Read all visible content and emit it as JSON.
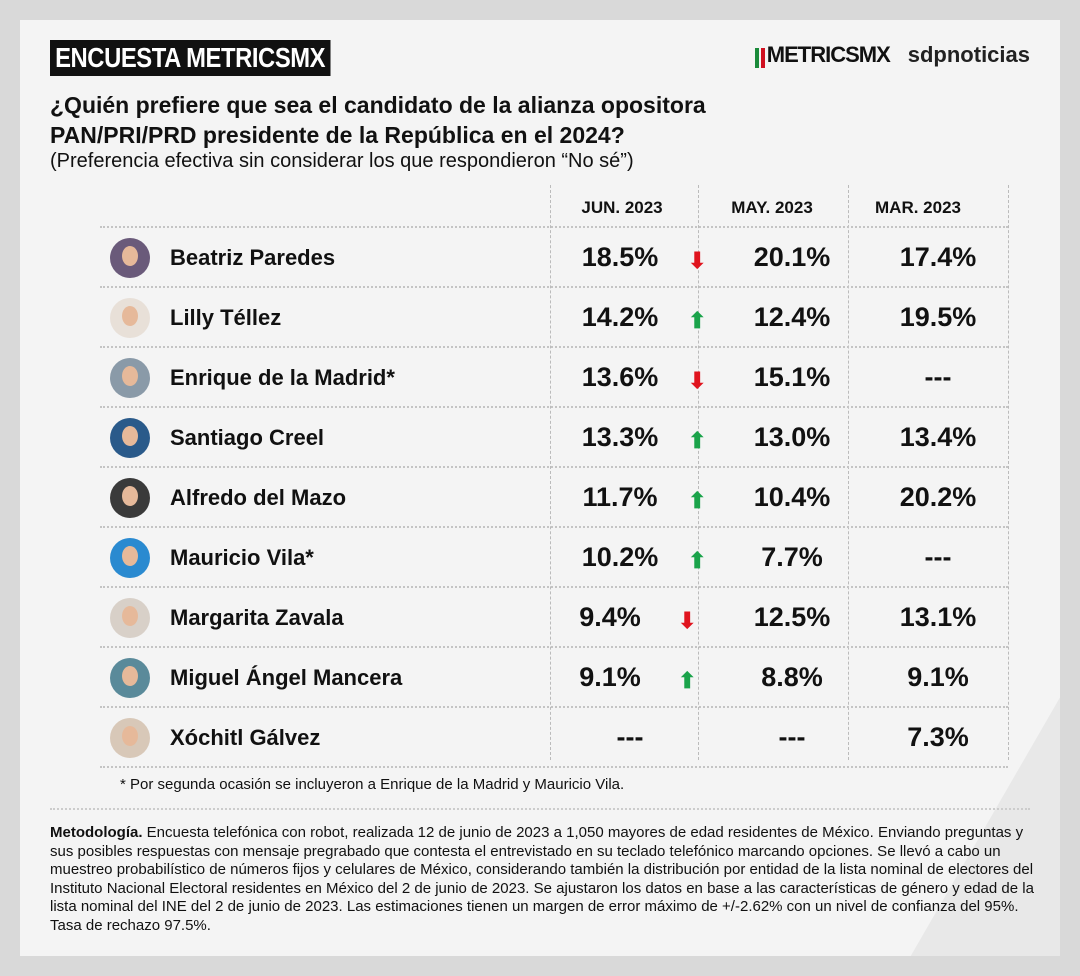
{
  "header": {
    "badge": "ENCUESTA METRICSMX",
    "logo_metrics": "METRICSMX",
    "logo_sdp": "sdpnoticias"
  },
  "title_line1": "¿Quién prefiere que sea el candidato de la alianza opositora",
  "title_line2": "PAN/PRI/PRD presidente de la República en el 2024?",
  "subtitle": "(Preferencia efectiva sin considerar los que respondieron “No sé”)",
  "colors": {
    "up": "#1aa34a",
    "down": "#e0141e"
  },
  "chart_data": {
    "type": "table",
    "columns": [
      "JUN. 2023",
      "MAY. 2023",
      "MAR. 2023"
    ],
    "rows": [
      {
        "name": "Beatriz Paredes",
        "jun": "18.5%",
        "trend": "down",
        "may": "20.1%",
        "mar": "17.4%"
      },
      {
        "name": "Lilly Téllez",
        "jun": "14.2%",
        "trend": "up",
        "may": "12.4%",
        "mar": "19.5%"
      },
      {
        "name": "Enrique de la Madrid*",
        "jun": "13.6%",
        "trend": "down",
        "may": "15.1%",
        "mar": "---"
      },
      {
        "name": "Santiago Creel",
        "jun": "13.3%",
        "trend": "up",
        "may": "13.0%",
        "mar": "13.4%"
      },
      {
        "name": "Alfredo del Mazo",
        "jun": "11.7%",
        "trend": "up",
        "may": "10.4%",
        "mar": "20.2%"
      },
      {
        "name": "Mauricio Vila*",
        "jun": "10.2%",
        "trend": "up",
        "may": "7.7%",
        "mar": "---"
      },
      {
        "name": "Margarita Zavala",
        "jun": "9.4%",
        "trend": "down",
        "may": "12.5%",
        "mar": "13.1%"
      },
      {
        "name": "Miguel Ángel Mancera",
        "jun": "9.1%",
        "trend": "up",
        "may": "8.8%",
        "mar": "9.1%"
      },
      {
        "name": "Xóchitl Gálvez",
        "jun": "---",
        "trend": "",
        "may": "---",
        "mar": "7.3%"
      }
    ]
  },
  "note": "* Por segunda ocasión se incluyeron a Enrique de la Madrid y Mauricio Vila.",
  "methodology_label": "Metodología.",
  "methodology_text": " Encuesta telefónica con robot, realizada 12 de junio de 2023 a 1,050 mayores de edad residentes de México. Enviando preguntas y sus posibles respuestas con mensaje pregrabado que contesta el entrevistado en su teclado telefónico marcando opciones. Se llevó a cabo un muestreo probabilístico de números fijos y celulares de México, considerando también la distribución por entidad de la lista nominal de electores del Instituto Nacional Electoral residentes en México del 2 de junio de 2023. Se ajustaron los datos en base a las características de género y edad de la lista nominal del INE del 2 de junio de 2023. Las estimaciones tienen un margen de error máximo de +/-2.62% con un nivel de confianza del 95%. Tasa de rechazo 97.5%."
}
